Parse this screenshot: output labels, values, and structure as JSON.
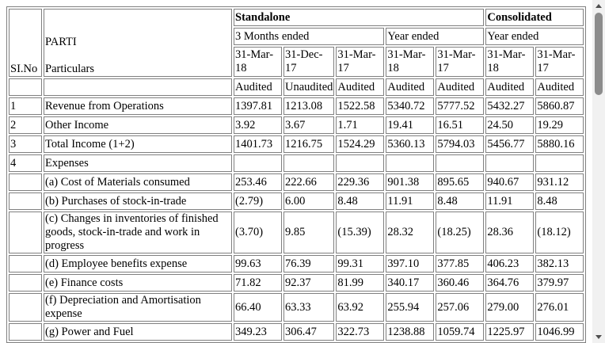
{
  "header": {
    "sl_no": "SI.No",
    "part": "PARTI",
    "particulars": "Particulars",
    "standalone": "Standalone",
    "consolidated": "Consolidated",
    "three_months": "3 Months ended",
    "year_ended_s": "Year ended",
    "year_ended_c": "Year ended",
    "dates": [
      "31-Mar-18",
      "31-Dec-17",
      "31-Mar-17",
      "31-Mar-18",
      "31-Mar-17",
      "31-Mar-18",
      "31-Mar-17"
    ],
    "status": [
      "Audited",
      "Unaudited",
      "Audited",
      "Audited",
      "Audited",
      "Audited",
      "Audited"
    ]
  },
  "rows": [
    {
      "sl": "1",
      "label": "Revenue from Operations",
      "v": [
        "1397.81",
        "1213.08",
        "1522.58",
        "5340.72",
        "5777.52",
        "5432.27",
        "5860.87"
      ]
    },
    {
      "sl": "2",
      "label": "Other Income",
      "v": [
        "3.92",
        "3.67",
        "1.71",
        "19.41",
        "16.51",
        "24.50",
        "19.29"
      ]
    },
    {
      "sl": "3",
      "label": "Total Income (1+2)",
      "v": [
        "1401.73",
        "1216.75",
        "1524.29",
        "5360.13",
        "5794.03",
        "5456.77",
        "5880.16"
      ]
    },
    {
      "sl": "4",
      "label": "Expenses",
      "v": [
        "",
        "",
        "",
        "",
        "",
        "",
        ""
      ]
    },
    {
      "sl": "",
      "label": "(a) Cost of Materials consumed",
      "v": [
        "253.46",
        "222.66",
        "229.36",
        "901.38",
        "895.65",
        "940.67",
        "931.12"
      ]
    },
    {
      "sl": "",
      "label": "(b) Purchases of stock-in-trade",
      "v": [
        "(2.79)",
        "6.00",
        "8.48",
        "11.91",
        "8.48",
        "11.91",
        "8.48"
      ]
    },
    {
      "sl": "",
      "label": "(c) Changes in inventories of finished goods, stock-in-trade and work in progress",
      "v": [
        "(3.70)",
        "9.85",
        "(15.39)",
        "28.32",
        "(18.25)",
        "28.36",
        "(18.12)"
      ]
    },
    {
      "sl": "",
      "label": "(d) Employee benefits expense",
      "v": [
        "99.63",
        "76.39",
        "99.31",
        "397.10",
        "377.85",
        "406.23",
        "382.13"
      ]
    },
    {
      "sl": "",
      "label": "(e) Finance costs",
      "v": [
        "71.82",
        "92.37",
        "81.99",
        "340.17",
        "360.46",
        "364.76",
        "379.97"
      ]
    },
    {
      "sl": "",
      "label": "(f) Depreciation and Amortisation expense",
      "v": [
        "66.40",
        "63.33",
        "63.92",
        "255.94",
        "257.06",
        "279.00",
        "276.01"
      ]
    },
    {
      "sl": "",
      "label": "(g) Power and Fuel",
      "v": [
        "349.23",
        "306.47",
        "322.73",
        "1238.88",
        "1059.74",
        "1225.97",
        "1046.99"
      ]
    }
  ]
}
